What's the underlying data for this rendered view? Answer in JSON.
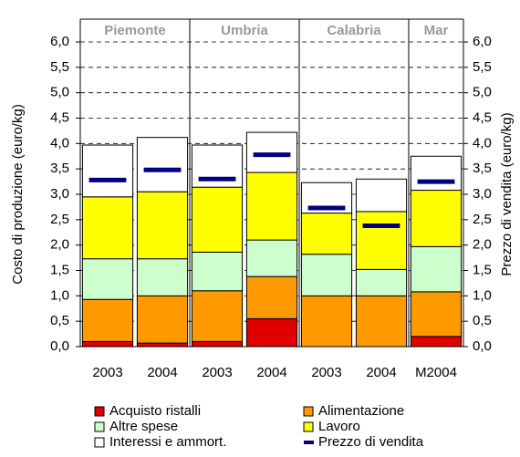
{
  "chart_data": {
    "type": "stacked-bar",
    "y_label": "Costo di produzione (euro/kg)",
    "y2_label": "Prezzo di vendita (euro/kg)",
    "groups": [
      {
        "name": "Piemonte",
        "categories": [
          "2003",
          "2004"
        ]
      },
      {
        "name": "Umbria",
        "categories": [
          "2003",
          "2004"
        ]
      },
      {
        "name": "Calabria",
        "categories": [
          "2003",
          "2004"
        ]
      },
      {
        "name": "Mar",
        "categories": [
          "M2004"
        ]
      }
    ],
    "series": [
      {
        "name": "Acquisto ristalli",
        "color": "#e00000",
        "values": [
          0.1,
          0.07,
          0.1,
          0.55,
          0,
          0,
          0.2
        ]
      },
      {
        "name": "Alimentazione",
        "color": "#ff9900",
        "values": [
          0.83,
          0.93,
          1.0,
          0.83,
          1.0,
          1.0,
          0.88
        ]
      },
      {
        "name": "Altre spese",
        "color": "#ccffcc",
        "values": [
          0.8,
          0.73,
          0.76,
          0.72,
          0.82,
          0.52,
          0.89
        ]
      },
      {
        "name": "Lavoro",
        "color": "#ffff00",
        "values": [
          1.22,
          1.32,
          1.28,
          1.33,
          0.81,
          1.14,
          1.11
        ]
      },
      {
        "name": "Interessi e ammort.",
        "color": "#ffffff",
        "values": [
          1.02,
          1.07,
          0.83,
          0.79,
          0.6,
          0.64,
          0.67
        ]
      },
      {
        "name": "Prezzo di vendita",
        "color": "#000080",
        "axis": "y2",
        "values": [
          3.28,
          3.48,
          3.3,
          3.78,
          2.73,
          2.38,
          3.25
        ]
      }
    ],
    "ylim": [
      0,
      6
    ],
    "yticks": [
      {
        "value": 0,
        "label": "0,0"
      },
      {
        "value": 0.5,
        "label": "0,5"
      },
      {
        "value": 1,
        "label": "1,0"
      },
      {
        "value": 1.5,
        "label": "1,5"
      },
      {
        "value": 2,
        "label": "2,0"
      },
      {
        "value": 2.5,
        "label": "2,5"
      },
      {
        "value": 3,
        "label": "3,0"
      },
      {
        "value": 3.5,
        "label": "3,5"
      },
      {
        "value": 4,
        "label": "4,0"
      },
      {
        "value": 4.5,
        "label": "4,5"
      },
      {
        "value": 5,
        "label": "5,0"
      },
      {
        "value": 5.5,
        "label": "5,5"
      },
      {
        "value": 6,
        "label": "6,0"
      }
    ],
    "y2lim": [
      0,
      6
    ],
    "y2ticks": [
      {
        "value": 0,
        "label": "0,0"
      },
      {
        "value": 0.5,
        "label": "0,5"
      },
      {
        "value": 1,
        "label": "1,0"
      },
      {
        "value": 1.5,
        "label": "1,5"
      },
      {
        "value": 2,
        "label": "2,0"
      },
      {
        "value": 2.5,
        "label": "2,5"
      },
      {
        "value": 3,
        "label": "3,0"
      },
      {
        "value": 3.5,
        "label": "3,5"
      },
      {
        "value": 4,
        "label": "4,0"
      },
      {
        "value": 4.5,
        "label": "4,5"
      },
      {
        "value": 5,
        "label": "5,0"
      },
      {
        "value": 5.5,
        "label": "5,5"
      },
      {
        "value": 6,
        "label": "6,0"
      }
    ],
    "grid": true
  }
}
